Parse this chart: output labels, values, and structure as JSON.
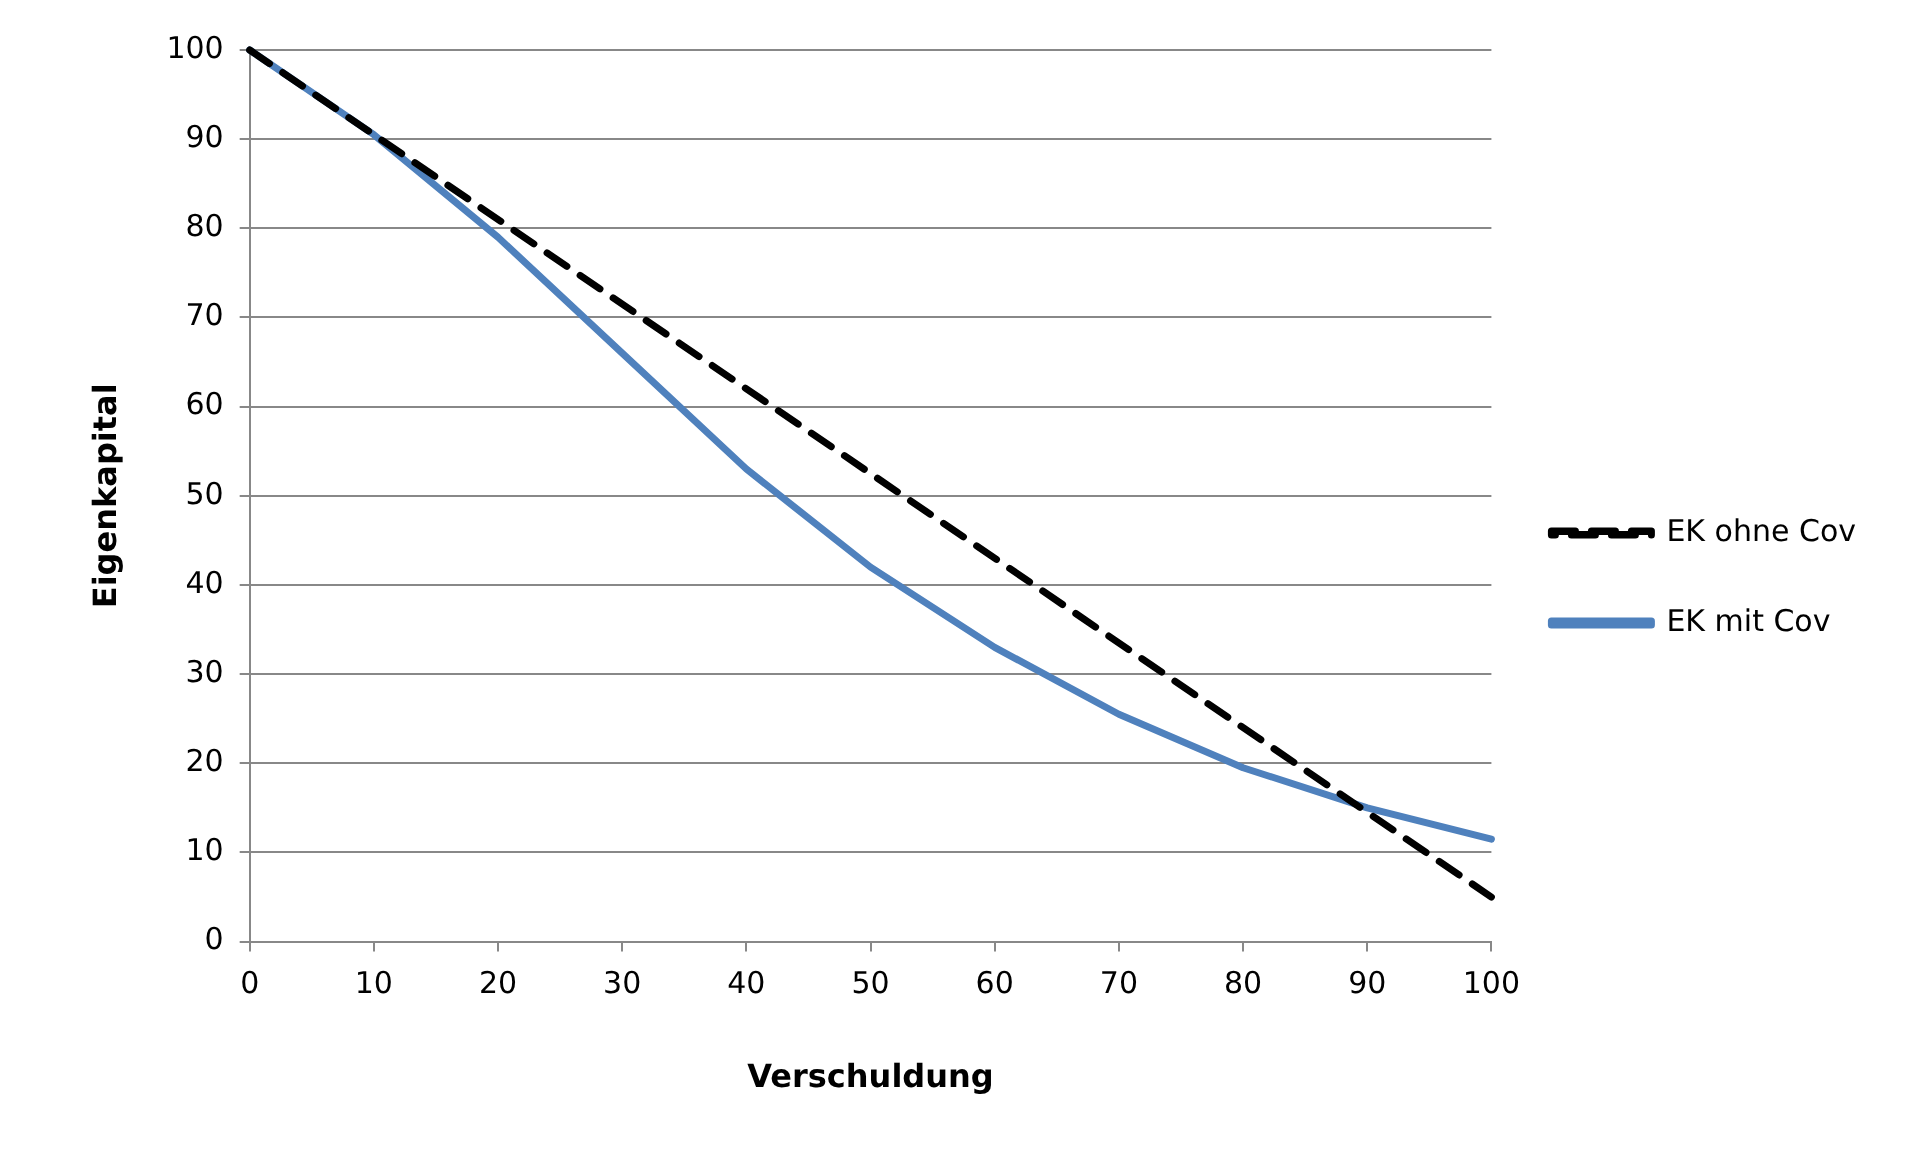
{
  "chart_data": {
    "type": "line",
    "xlabel": "Verschuldung",
    "ylabel": "Eigenkapital",
    "x": [
      0,
      10,
      20,
      30,
      40,
      50,
      60,
      70,
      80,
      90,
      100
    ],
    "series": [
      {
        "name": "EK ohne Cov",
        "color": "#000000",
        "line_style": "dashed",
        "x": [
          0,
          100
        ],
        "values": [
          100,
          5
        ]
      },
      {
        "name": "EK mit Cov",
        "color": "#4f81bd",
        "line_style": "solid",
        "values": [
          100,
          90.5,
          79,
          66,
          53,
          42,
          33,
          25.5,
          19.5,
          15,
          11.5
        ]
      }
    ],
    "xlim": [
      0,
      100
    ],
    "xticks": [
      0,
      10,
      20,
      30,
      40,
      50,
      60,
      70,
      80,
      90,
      100
    ],
    "ylim": [
      0,
      100
    ],
    "yticks": [
      0,
      10,
      20,
      30,
      40,
      50,
      60,
      70,
      80,
      90,
      100
    ],
    "grid": "y",
    "legend": "right",
    "marker": "none"
  }
}
